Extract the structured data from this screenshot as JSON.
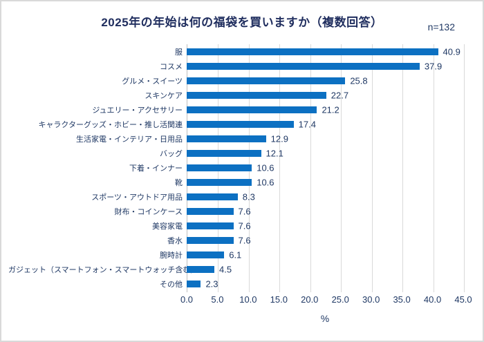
{
  "chart_data": {
    "type": "bar",
    "orientation": "horizontal",
    "title": "2025年の年始は何の福袋を買いますか（複数回答）",
    "n_label": "n=132",
    "xlabel": "%",
    "xlim": [
      0,
      45
    ],
    "xticks": [
      "0.0",
      "5.0",
      "10.0",
      "15.0",
      "20.0",
      "25.0",
      "30.0",
      "35.0",
      "40.0",
      "45.0"
    ],
    "xtick_values": [
      0,
      5,
      10,
      15,
      20,
      25,
      30,
      35,
      40,
      45
    ],
    "grid": true,
    "data_labels": true,
    "categories": [
      "服",
      "コスメ",
      "グルメ・スイーツ",
      "スキンケア",
      "ジュエリー・アクセサリー",
      "キャラクターグッズ・ホビー・推し活関連",
      "生活家電・インテリア・日用品",
      "バッグ",
      "下着・インナー",
      "靴",
      "スポーツ・アウトドア用品",
      "財布・コインケース",
      "美容家電",
      "香水",
      "腕時計",
      "ガジェット（スマートフォン・スマートウォッチ含む）",
      "その他"
    ],
    "values": [
      40.9,
      37.9,
      25.8,
      22.7,
      21.2,
      17.4,
      12.9,
      12.1,
      10.6,
      10.6,
      8.3,
      7.6,
      7.6,
      7.6,
      6.1,
      4.5,
      2.3
    ],
    "colors": {
      "bar": "#0c70c2",
      "text": "#1f3864",
      "title_text": "#1f2d5e",
      "gridline": "#d9d9d9",
      "axis_line": "#bfbfbf",
      "border": "#d9d9d9",
      "background": "#ffffff"
    }
  }
}
